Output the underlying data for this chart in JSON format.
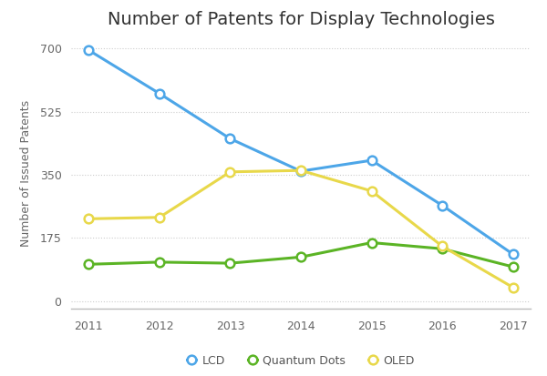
{
  "title": "Number of Patents for Display Technologies",
  "ylabel": "Number of Issued Patents",
  "years": [
    2011,
    2012,
    2013,
    2014,
    2015,
    2016,
    2017
  ],
  "series": [
    {
      "name": "LCD",
      "values": [
        695,
        575,
        450,
        360,
        390,
        265,
        130
      ],
      "color": "#4DA6E8",
      "label": "LCD"
    },
    {
      "name": "Quantum Dots",
      "values": [
        102,
        108,
        105,
        122,
        162,
        145,
        95
      ],
      "color": "#5BB425",
      "label": "Quantum Dots"
    },
    {
      "name": "OLED",
      "values": [
        228,
        232,
        358,
        362,
        305,
        152,
        38
      ],
      "color": "#E8D84A",
      "label": "OLED"
    }
  ],
  "yticks": [
    0,
    175,
    350,
    525,
    700
  ],
  "ylim": [
    -20,
    730
  ],
  "background_color": "#FFFFFF",
  "grid_color": "#CCCCCC",
  "title_fontsize": 14,
  "label_fontsize": 9,
  "tick_fontsize": 9,
  "legend_fontsize": 9,
  "linewidth": 2.2,
  "markersize": 7
}
